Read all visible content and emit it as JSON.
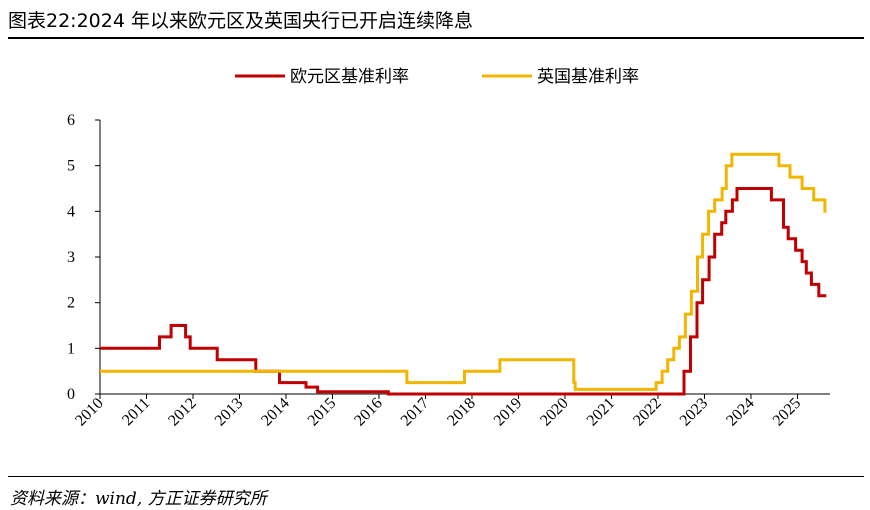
{
  "figure": {
    "title": "图表22:2024 年以来欧元区及英国央行已开启连续降息",
    "source": "资料来源：wind, 方正证券研究所"
  },
  "chart_data": {
    "type": "line",
    "title": "",
    "xlabel": "",
    "ylabel": "",
    "xlim": [
      2010,
      2025.7
    ],
    "ylim": [
      0,
      6
    ],
    "yticks": [
      0,
      1,
      2,
      3,
      4,
      5,
      6
    ],
    "xticks": [
      "2010",
      "2011",
      "2012",
      "2013",
      "2014",
      "2015",
      "2016",
      "2017",
      "2018",
      "2019",
      "2020",
      "2021",
      "2022",
      "2023",
      "2024",
      "2025"
    ],
    "grid": false,
    "legend_position": "top",
    "step": true,
    "series": [
      {
        "name": "欧元区基准利率",
        "color": "#C00000",
        "points": [
          [
            2010.0,
            1.0
          ],
          [
            2011.28,
            1.25
          ],
          [
            2011.53,
            1.5
          ],
          [
            2011.84,
            1.25
          ],
          [
            2011.94,
            1.0
          ],
          [
            2012.52,
            0.75
          ],
          [
            2013.35,
            0.5
          ],
          [
            2013.86,
            0.25
          ],
          [
            2014.43,
            0.15
          ],
          [
            2014.68,
            0.05
          ],
          [
            2016.2,
            0.0
          ],
          [
            2022.56,
            0.5
          ],
          [
            2022.7,
            1.25
          ],
          [
            2022.84,
            2.0
          ],
          [
            2022.96,
            2.5
          ],
          [
            2023.1,
            3.0
          ],
          [
            2023.22,
            3.5
          ],
          [
            2023.37,
            3.75
          ],
          [
            2023.46,
            4.0
          ],
          [
            2023.6,
            4.25
          ],
          [
            2023.7,
            4.5
          ],
          [
            2024.44,
            4.25
          ],
          [
            2024.7,
            3.65
          ],
          [
            2024.8,
            3.4
          ],
          [
            2024.96,
            3.15
          ],
          [
            2025.1,
            2.9
          ],
          [
            2025.19,
            2.65
          ],
          [
            2025.3,
            2.4
          ],
          [
            2025.46,
            2.15
          ],
          [
            2025.62,
            2.15
          ]
        ]
      },
      {
        "name": "英国基准利率",
        "color": "#F2B600",
        "points": [
          [
            2010.0,
            0.5
          ],
          [
            2016.6,
            0.25
          ],
          [
            2017.84,
            0.5
          ],
          [
            2018.6,
            0.75
          ],
          [
            2020.19,
            0.25
          ],
          [
            2020.22,
            0.1
          ],
          [
            2021.96,
            0.25
          ],
          [
            2022.09,
            0.5
          ],
          [
            2022.21,
            0.75
          ],
          [
            2022.34,
            1.0
          ],
          [
            2022.46,
            1.25
          ],
          [
            2022.59,
            1.75
          ],
          [
            2022.72,
            2.25
          ],
          [
            2022.85,
            3.0
          ],
          [
            2022.96,
            3.5
          ],
          [
            2023.09,
            4.0
          ],
          [
            2023.22,
            4.25
          ],
          [
            2023.38,
            4.5
          ],
          [
            2023.47,
            5.0
          ],
          [
            2023.59,
            5.25
          ],
          [
            2024.6,
            5.0
          ],
          [
            2024.84,
            4.75
          ],
          [
            2025.1,
            4.5
          ],
          [
            2025.35,
            4.25
          ],
          [
            2025.59,
            4.0
          ],
          [
            2025.62,
            4.0
          ]
        ]
      }
    ]
  }
}
